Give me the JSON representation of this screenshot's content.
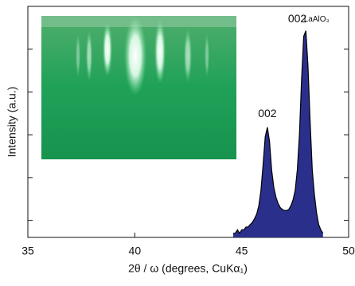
{
  "chart_data": {
    "type": "area",
    "x_label": "2θ / ω (degrees, CuKα₁)",
    "y_label": "Intensity (a.u.)",
    "log_scale": true,
    "x": [
      44.6,
      44.7,
      44.8,
      44.9,
      45.0,
      45.1,
      45.2,
      45.3,
      45.4,
      45.5,
      45.6,
      45.7,
      45.8,
      45.9,
      46.0,
      46.1,
      46.2,
      46.3,
      46.4,
      46.5,
      46.6,
      46.7,
      46.8,
      46.9,
      47.0,
      47.1,
      47.2,
      47.3,
      47.4,
      47.5,
      47.6,
      47.7,
      47.8,
      47.9,
      48.0,
      48.1,
      48.2,
      48.3,
      48.4,
      48.5,
      48.6,
      48.7,
      48.8
    ],
    "values": [
      5,
      5,
      6,
      5,
      6,
      6,
      7,
      7,
      8,
      9,
      11,
      14,
      22,
      50,
      200,
      900,
      1500,
      700,
      150,
      60,
      35,
      25,
      20,
      18,
      17,
      17,
      18,
      22,
      30,
      50,
      150,
      1000,
      20000,
      200000,
      270000,
      40000,
      2000,
      150,
      40,
      15,
      8,
      6,
      5
    ],
    "color": "#2b2f8c",
    "xlim": [
      35,
      50
    ],
    "xticks": [
      35,
      40,
      45,
      50
    ],
    "ylim": [
      4,
      1000000
    ],
    "yticks": [
      10,
      100,
      1000,
      10000,
      100000
    ],
    "annotations": [
      {
        "text": "002",
        "x": 46.2,
        "y": 3000
      },
      {
        "text": "002",
        "x": 47.6,
        "y": 500000
      },
      {
        "text": "LaAlO₃",
        "x": 48.5,
        "y": 500000
      }
    ]
  }
}
